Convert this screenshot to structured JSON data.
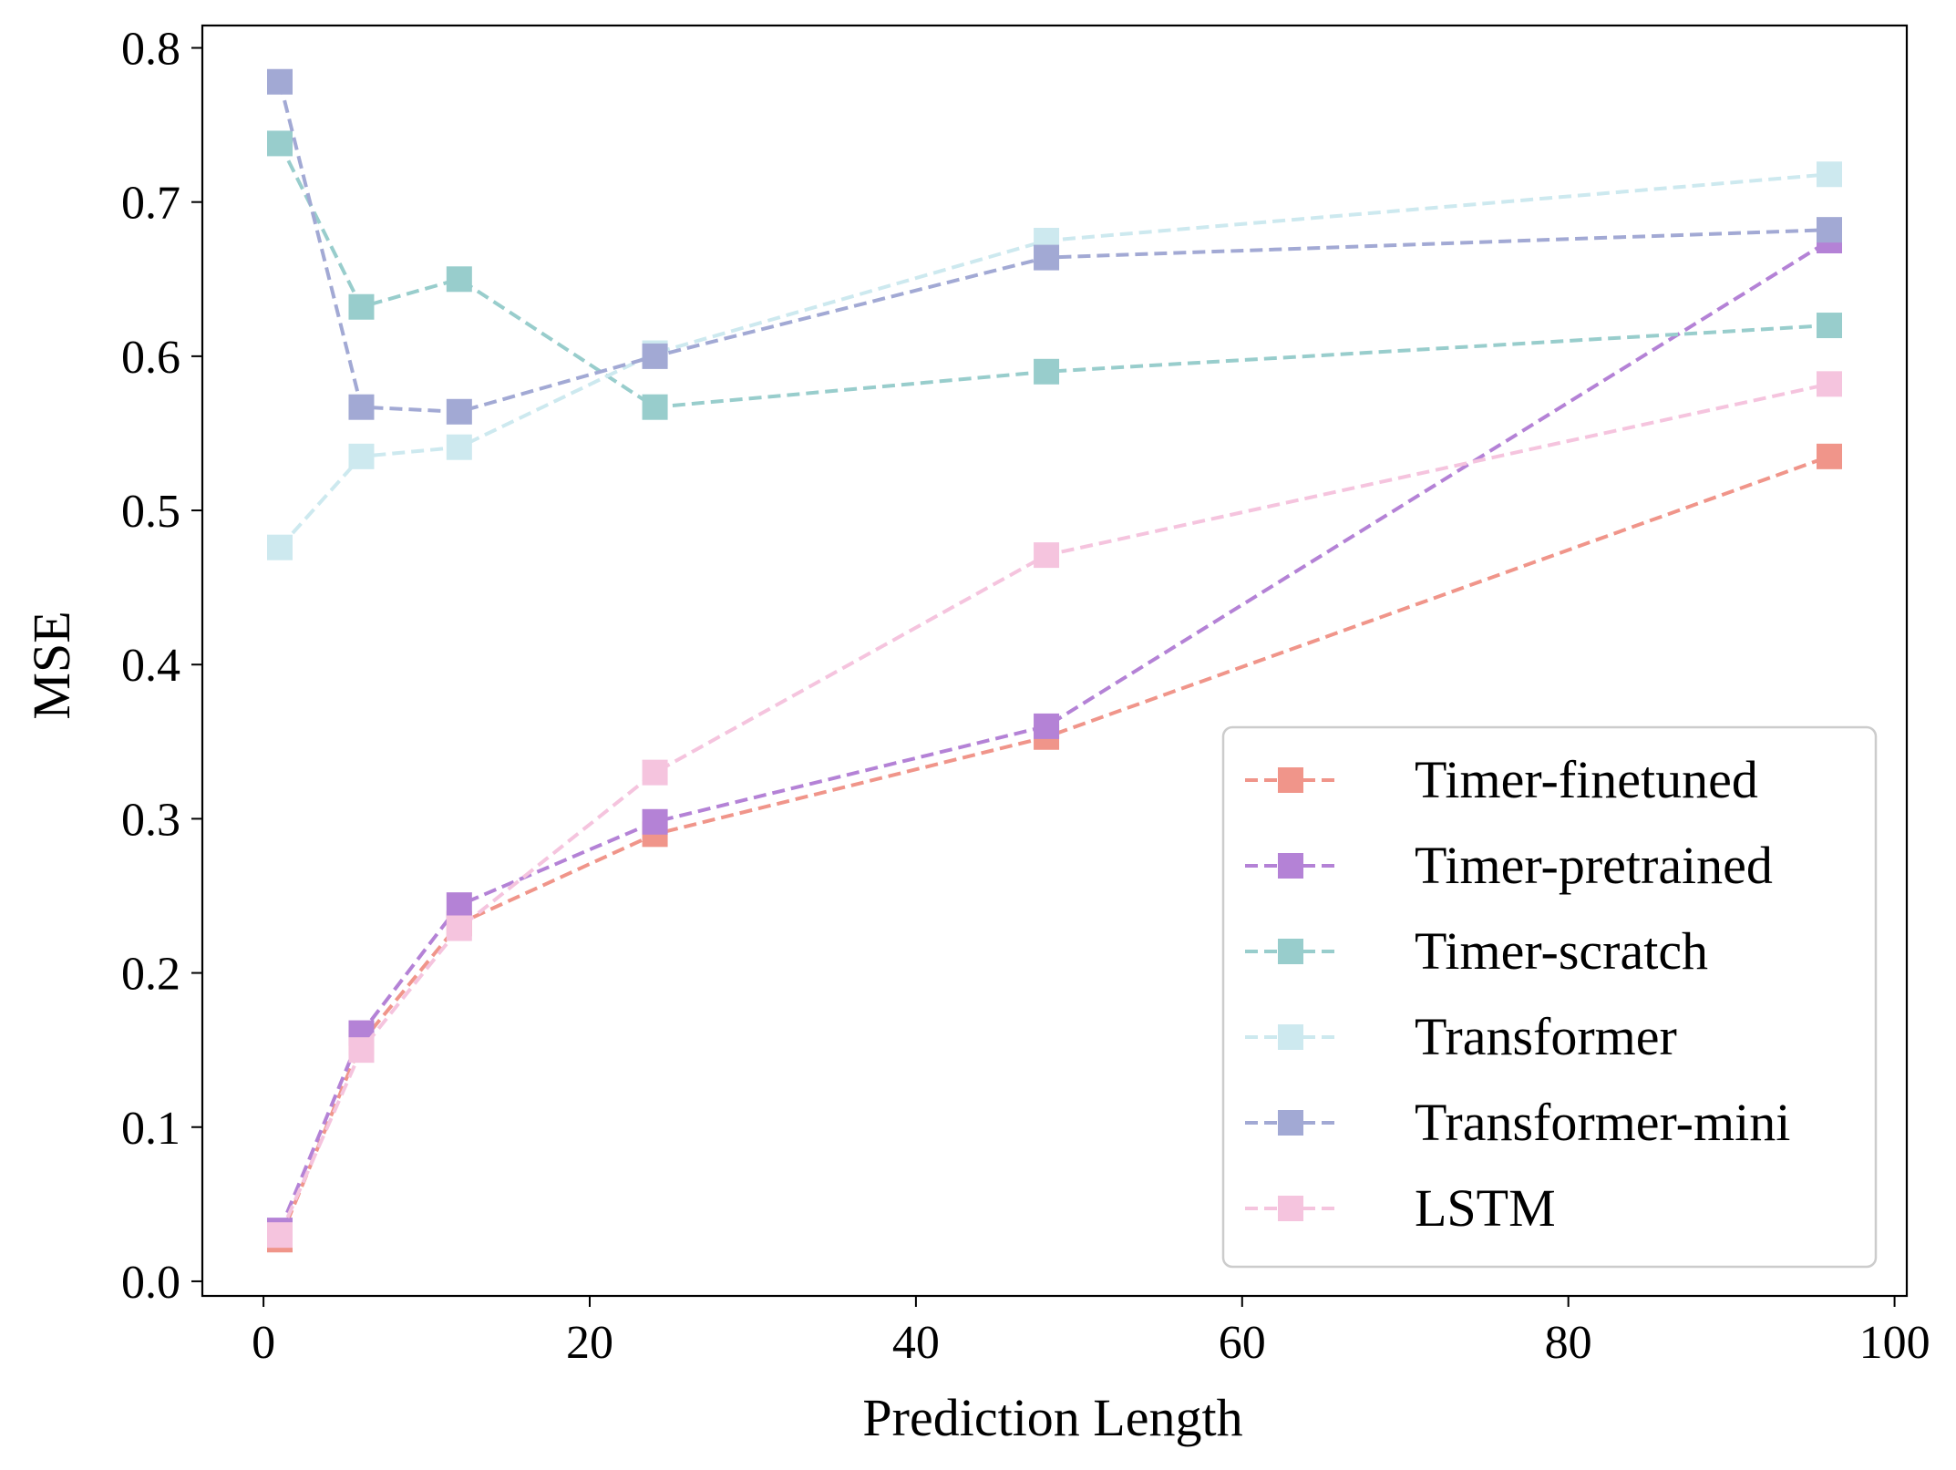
{
  "chart_data": {
    "type": "line",
    "title": "",
    "xlabel": "Prediction Length",
    "ylabel": "MSE",
    "xlim": [
      -3.75,
      100.75
    ],
    "ylim": [
      -0.0095,
      0.8145
    ],
    "xticks": [
      0,
      20,
      40,
      60,
      80,
      100
    ],
    "xtick_labels": [
      "0",
      "20",
      "40",
      "60",
      "80",
      "100"
    ],
    "yticks": [
      0.0,
      0.1,
      0.2,
      0.3,
      0.4,
      0.5,
      0.6,
      0.7,
      0.8
    ],
    "ytick_labels": [
      "0.0",
      "0.1",
      "0.2",
      "0.3",
      "0.4",
      "0.5",
      "0.6",
      "0.7",
      "0.8"
    ],
    "grid": false,
    "legend_position": "lower-right",
    "x": [
      1,
      6,
      12,
      24,
      48,
      96
    ],
    "series": [
      {
        "name": "Timer-finetuned",
        "color": "#F0958A",
        "values": [
          0.027,
          0.155,
          0.232,
          0.29,
          0.353,
          0.535
        ]
      },
      {
        "name": "Timer-pretrained",
        "color": "#B482D6",
        "values": [
          0.033,
          0.161,
          0.244,
          0.298,
          0.36,
          0.675
        ]
      },
      {
        "name": "Timer-scratch",
        "color": "#98CDCC",
        "values": [
          0.738,
          0.632,
          0.65,
          0.567,
          0.59,
          0.62
        ]
      },
      {
        "name": "Transformer",
        "color": "#CDE9EF",
        "values": [
          0.476,
          0.535,
          0.541,
          0.602,
          0.675,
          0.718
        ]
      },
      {
        "name": "Transformer-mini",
        "color": "#A2A9D4",
        "values": [
          0.778,
          0.567,
          0.564,
          0.6,
          0.664,
          0.682
        ]
      },
      {
        "name": "LSTM",
        "color": "#F5C4DE",
        "values": [
          0.03,
          0.15,
          0.229,
          0.33,
          0.471,
          0.582
        ]
      }
    ]
  }
}
